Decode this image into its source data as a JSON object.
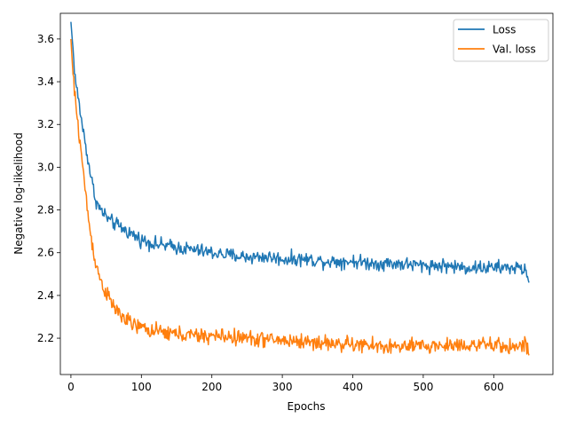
{
  "chart_data": {
    "type": "line",
    "title": "",
    "xlabel": "Epochs",
    "ylabel": "Negative log-likelihood",
    "xlim": [
      -15,
      684
    ],
    "ylim": [
      2.03,
      3.72
    ],
    "xticks": [
      0,
      100,
      200,
      300,
      400,
      500,
      600
    ],
    "yticks": [
      2.2,
      2.4,
      2.6,
      2.8,
      3.0,
      3.2,
      3.4,
      3.6
    ],
    "grid": false,
    "legend": "top-right",
    "series": [
      {
        "name": "Loss",
        "color": "#1f77b4",
        "points": [
          [
            0,
            3.68
          ],
          [
            3,
            3.55
          ],
          [
            6,
            3.42
          ],
          [
            10,
            3.33
          ],
          [
            15,
            3.22
          ],
          [
            20,
            3.12
          ],
          [
            25,
            3.02
          ],
          [
            30,
            2.93
          ],
          [
            35,
            2.85
          ],
          [
            40,
            2.81
          ],
          [
            45,
            2.79
          ],
          [
            50,
            2.77
          ],
          [
            55,
            2.75
          ],
          [
            60,
            2.74
          ],
          [
            70,
            2.72
          ],
          [
            80,
            2.7
          ],
          [
            90,
            2.68
          ],
          [
            100,
            2.66
          ],
          [
            110,
            2.65
          ],
          [
            120,
            2.64
          ],
          [
            140,
            2.63
          ],
          [
            160,
            2.62
          ],
          [
            180,
            2.61
          ],
          [
            200,
            2.6
          ],
          [
            220,
            2.59
          ],
          [
            250,
            2.58
          ],
          [
            280,
            2.58
          ],
          [
            300,
            2.57
          ],
          [
            330,
            2.57
          ],
          [
            360,
            2.56
          ],
          [
            400,
            2.56
          ],
          [
            430,
            2.55
          ],
          [
            460,
            2.55
          ],
          [
            500,
            2.54
          ],
          [
            530,
            2.54
          ],
          [
            560,
            2.53
          ],
          [
            600,
            2.53
          ],
          [
            630,
            2.53
          ],
          [
            645,
            2.52
          ],
          [
            650,
            2.46
          ]
        ],
        "noise": 0.025
      },
      {
        "name": "Val. loss",
        "color": "#ff7f0e",
        "points": [
          [
            0,
            3.6
          ],
          [
            3,
            3.43
          ],
          [
            6,
            3.32
          ],
          [
            10,
            3.2
          ],
          [
            15,
            3.06
          ],
          [
            20,
            2.9
          ],
          [
            25,
            2.76
          ],
          [
            30,
            2.64
          ],
          [
            35,
            2.56
          ],
          [
            40,
            2.49
          ],
          [
            45,
            2.45
          ],
          [
            50,
            2.41
          ],
          [
            55,
            2.38
          ],
          [
            60,
            2.35
          ],
          [
            70,
            2.31
          ],
          [
            80,
            2.28
          ],
          [
            90,
            2.26
          ],
          [
            100,
            2.25
          ],
          [
            120,
            2.23
          ],
          [
            150,
            2.22
          ],
          [
            180,
            2.21
          ],
          [
            210,
            2.21
          ],
          [
            250,
            2.2
          ],
          [
            300,
            2.19
          ],
          [
            350,
            2.18
          ],
          [
            400,
            2.17
          ],
          [
            450,
            2.16
          ],
          [
            480,
            2.16
          ],
          [
            520,
            2.165
          ],
          [
            560,
            2.17
          ],
          [
            600,
            2.165
          ],
          [
            630,
            2.16
          ],
          [
            645,
            2.17
          ],
          [
            650,
            2.12
          ]
        ],
        "noise": 0.028
      }
    ]
  }
}
